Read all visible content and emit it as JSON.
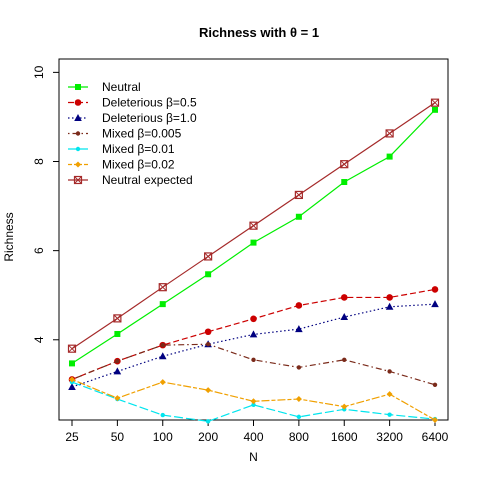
{
  "chart_data": {
    "type": "line",
    "title": "Richness with θ = 1",
    "xlabel": "N",
    "ylabel": "Richness",
    "categories": [
      "25",
      "50",
      "100",
      "200",
      "400",
      "800",
      "1600",
      "3200",
      "6400"
    ],
    "y_ticks": [
      "4",
      "6",
      "8",
      "10"
    ],
    "ylim": [
      2.2,
      10.3
    ],
    "grid": false,
    "legend_position": "top-left",
    "series": [
      {
        "name": "Neutral",
        "color": "#00ee00",
        "line": "solid",
        "marker": "square",
        "values": [
          3.47,
          4.13,
          4.8,
          5.47,
          6.18,
          6.76,
          7.54,
          8.11,
          9.16
        ]
      },
      {
        "name": "Deleterious β=0.5",
        "color": "#cc0000",
        "line": "dashed",
        "marker": "circle",
        "values": [
          3.11,
          3.52,
          3.88,
          4.18,
          4.47,
          4.77,
          4.95,
          4.95,
          5.13
        ]
      },
      {
        "name": "Deleterious β=1.0",
        "color": "#000080",
        "line": "dotted",
        "marker": "triangle",
        "values": [
          2.94,
          3.29,
          3.63,
          3.9,
          4.12,
          4.24,
          4.51,
          4.74,
          4.8
        ]
      },
      {
        "name": "Mixed β=0.005",
        "color": "#7a2a1a",
        "line": "dotdash",
        "marker": "dot",
        "values": [
          3.11,
          3.52,
          3.88,
          3.9,
          3.55,
          3.38,
          3.55,
          3.29,
          2.99
        ]
      },
      {
        "name": "Mixed β=0.01",
        "color": "#00e5ee",
        "line": "longdash",
        "marker": "dot",
        "values": [
          3.05,
          2.67,
          2.31,
          2.17,
          2.54,
          2.27,
          2.44,
          2.32,
          2.22
        ]
      },
      {
        "name": "Mixed β=0.02",
        "color": "#f0a000",
        "line": "twodash",
        "marker": "diamond",
        "values": [
          3.11,
          2.69,
          3.05,
          2.87,
          2.62,
          2.67,
          2.5,
          2.78,
          2.2
        ]
      },
      {
        "name": "Neutral expected",
        "color": "#a52a2a",
        "line": "solid",
        "marker": "boxcross",
        "values": [
          3.8,
          4.48,
          5.18,
          5.87,
          6.56,
          7.25,
          7.94,
          8.63,
          9.32
        ]
      }
    ]
  }
}
